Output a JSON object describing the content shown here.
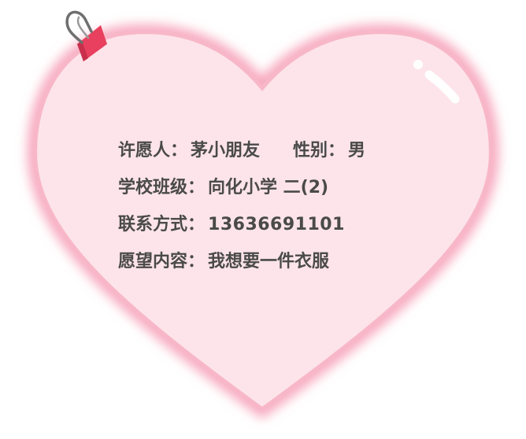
{
  "card": {
    "colors": {
      "heart_fill": "#fce4ea",
      "heart_glow": "#f7a9bf",
      "clip_red": "#e8405e",
      "text": "#4a4a4a"
    },
    "icons": [
      "binder-clip-icon",
      "shine-highlight-icon"
    ]
  },
  "wish": {
    "wisher_label": "许愿人：",
    "wisher_value": "茅小朋友",
    "gender_label": "性别：",
    "gender_value": "男",
    "school_label": "学校班级：",
    "school_value": "向化小学 二(2)",
    "contact_label": "联系方式：",
    "contact_value": "13636691101",
    "content_label": "愿望内容：",
    "content_value": "我想要一件衣服"
  }
}
